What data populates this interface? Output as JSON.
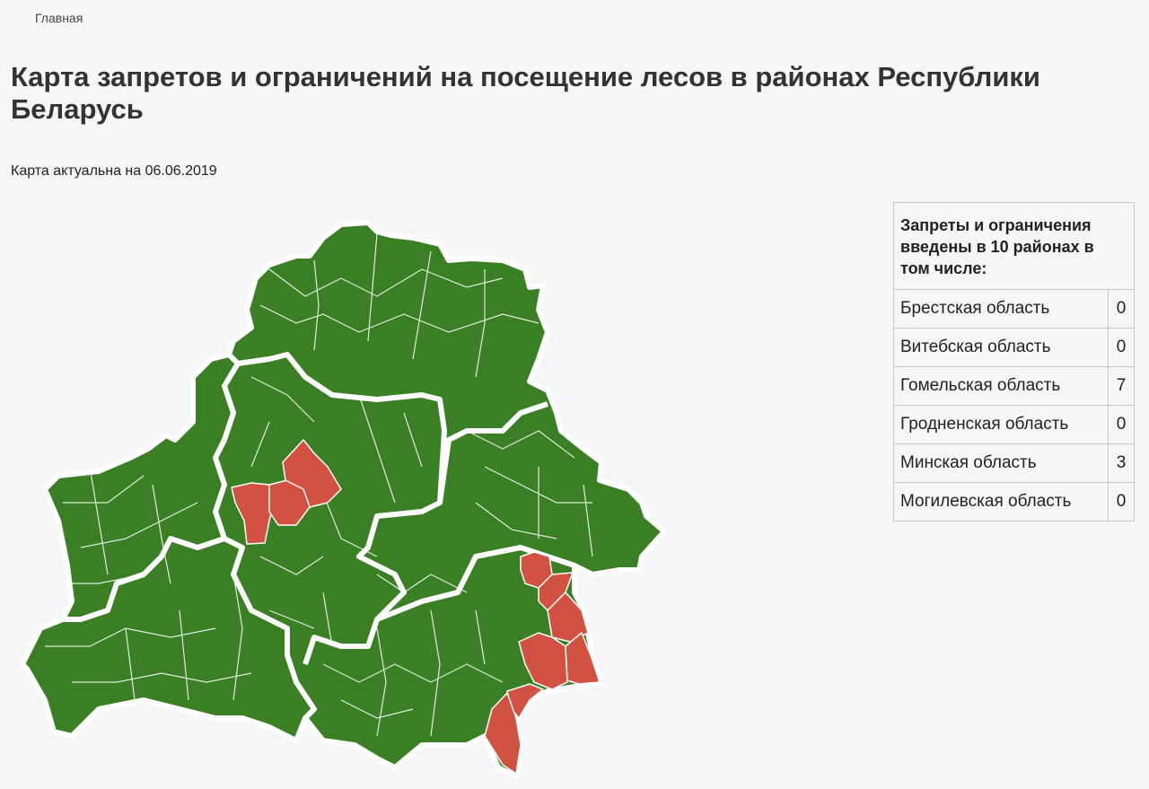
{
  "breadcrumb": "Главная",
  "title": "Карта запретов и ограничений на посещение лесов в районах Республики Беларусь",
  "subtitle": "Карта актуальна на 06.06.2019",
  "table": {
    "header": "Запреты и ограничения введены в 10 районах в том числе:",
    "rows": [
      [
        "Брестская область",
        0
      ],
      [
        "Витебская область",
        0
      ],
      [
        "Гомельская область",
        7
      ],
      [
        "Гродненская область",
        0
      ],
      [
        "Минская область",
        3
      ],
      [
        "Могилевская область",
        0
      ]
    ]
  }
}
